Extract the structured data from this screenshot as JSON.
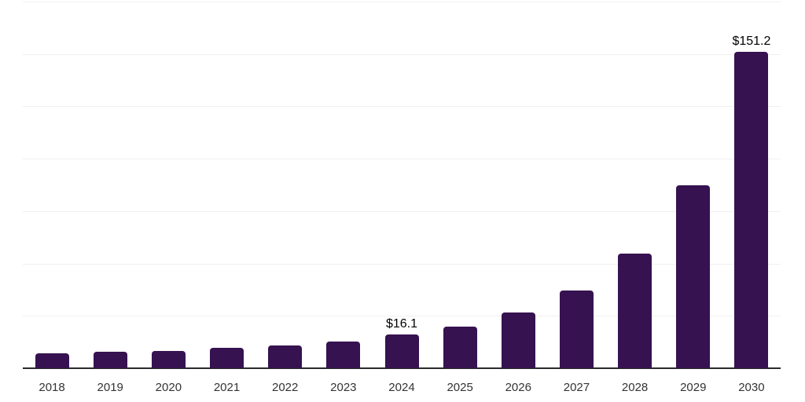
{
  "chart_data": {
    "type": "bar",
    "title": "",
    "xlabel": "",
    "ylabel": "",
    "categories": [
      "2018",
      "2019",
      "2020",
      "2021",
      "2022",
      "2023",
      "2024",
      "2025",
      "2026",
      "2027",
      "2028",
      "2029",
      "2030"
    ],
    "values": [
      7.0,
      7.9,
      8.4,
      9.7,
      10.8,
      12.9,
      16.1,
      19.7,
      26.7,
      37.1,
      54.7,
      87.2,
      151.2
    ],
    "value_labels": [
      "",
      "",
      "",
      "",
      "",
      "",
      "$16.1",
      "",
      "",
      "",
      "",
      "",
      "$151.2"
    ],
    "ylim": [
      0,
      175
    ],
    "grid_step": 25,
    "grid": true,
    "legend": false,
    "y_axis_labels_visible": false,
    "colors": {
      "bar": "#361250",
      "gridline": "#f0f0f0",
      "axis_line": "#2b2b2b",
      "tick_label": "#333333",
      "value_label": "#000000",
      "background": "#ffffff"
    }
  }
}
